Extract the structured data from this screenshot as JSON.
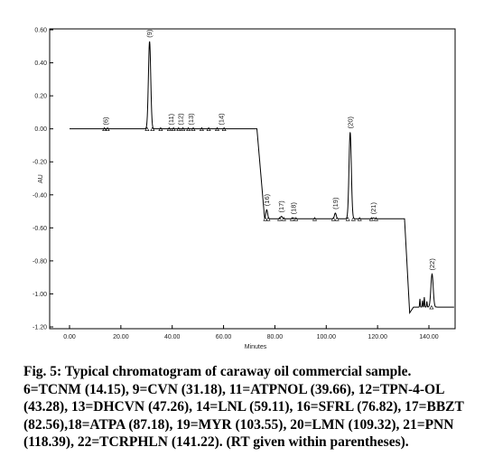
{
  "chart_data": {
    "type": "line",
    "title": "",
    "xlabel": "Minutes",
    "ylabel": "AU",
    "xlim": [
      0,
      150
    ],
    "ylim": [
      -1.2,
      0.6
    ],
    "x_ticks": [
      "0.00",
      "20.00",
      "40.00",
      "60.00",
      "80.00",
      "100.00",
      "120.00",
      "140.00"
    ],
    "y_ticks": [
      "0.60",
      "0.40",
      "0.20",
      "0.00",
      "-0.20",
      "-0.40",
      "-0.60",
      "-0.80",
      "-1.00",
      "-1.20"
    ],
    "grid": false,
    "peaks": [
      {
        "label": "(6)",
        "rt": 14.15,
        "top": 0.0
      },
      {
        "label": "(9)",
        "rt": 31.18,
        "top": 0.53
      },
      {
        "label": "(11)",
        "rt": 39.66,
        "top": 0.0
      },
      {
        "label": "(12)",
        "rt": 43.28,
        "top": 0.0
      },
      {
        "label": "(13)",
        "rt": 47.26,
        "top": 0.0
      },
      {
        "label": "(14)",
        "rt": 59.11,
        "top": 0.0
      },
      {
        "label": "(16)",
        "rt": 76.82,
        "top": -0.49
      },
      {
        "label": "(17)",
        "rt": 82.56,
        "top": -0.53
      },
      {
        "label": "(18)",
        "rt": 87.18,
        "top": -0.54
      },
      {
        "label": "(19)",
        "rt": 103.55,
        "top": -0.51
      },
      {
        "label": "(20)",
        "rt": 109.32,
        "top": -0.02
      },
      {
        "label": "(21)",
        "rt": 118.39,
        "top": -0.54
      },
      {
        "label": "(22)",
        "rt": 141.22,
        "top": -0.88
      }
    ],
    "baseline_segments": [
      {
        "x": [
          0,
          75
        ],
        "y": 0.0
      },
      {
        "x": [
          75.5,
          122
        ],
        "y": -0.545
      },
      {
        "x": [
          122,
          131
        ],
        "y": -0.545
      },
      {
        "x": [
          132,
          150
        ],
        "y": -1.08
      }
    ]
  },
  "caption": {
    "title": "Fig. 5: Typical chromatogram of caraway oil commercial sample.",
    "body": "6=TCNM (14.15), 9=CVN (31.18), 11=ATPNOL (39.66), 12=TPN-4-OL (43.28), 13=DHCVN (47.26), 14=LNL (59.11), 16=SFRL (76.82), 17=BBZT (82.56),18=ATPA (87.18), 19=MYR (103.55), 20=LMN (109.32), 21=PNN (118.39), 22=TCRPHLN (141.22). (RT given within parentheses)."
  }
}
